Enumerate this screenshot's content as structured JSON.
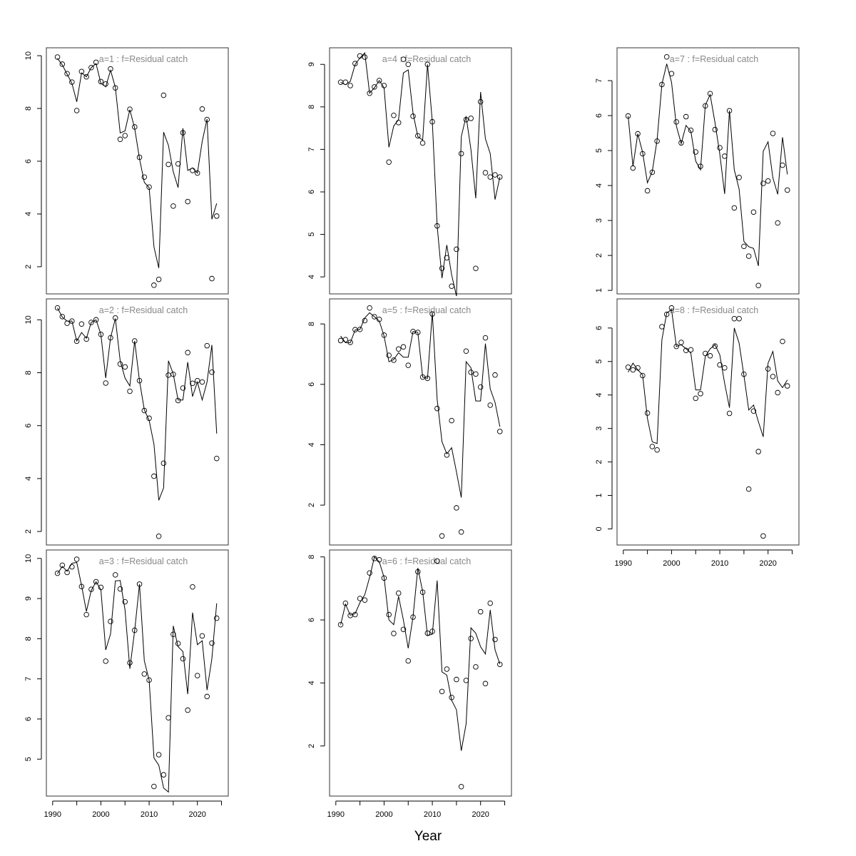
{
  "chart_data": {
    "type": "multi-panel line+scatter",
    "xlabel": "Year",
    "years": [
      1991,
      1992,
      1993,
      1994,
      1995,
      1996,
      1997,
      1998,
      1999,
      2000,
      2001,
      2002,
      2003,
      2004,
      2005,
      2006,
      2007,
      2008,
      2009,
      2010,
      2011,
      2012,
      2013,
      2014,
      2015,
      2016,
      2017,
      2018,
      2019,
      2020,
      2021,
      2022,
      2023,
      2024
    ],
    "xlim": [
      1988.7,
      2026.4
    ],
    "xticks": [
      1990,
      1995,
      2000,
      2005,
      2010,
      2015,
      2020,
      2025
    ],
    "xtick_labels": [
      "1990",
      "",
      "2000",
      "",
      "2010",
      "",
      "2020",
      ""
    ],
    "grid": false,
    "colors": {
      "points": "#000000",
      "line": "#000000",
      "title": "#888888"
    },
    "panels": [
      {
        "title": "a=1  :  f=Residual catch",
        "ylim": [
          0.97,
          10.3
        ],
        "yticks": [
          2,
          4,
          6,
          8,
          10
        ],
        "show_x_axis": false,
        "observed": [
          9.95,
          9.68,
          9.32,
          9.0,
          7.92,
          9.4,
          9.2,
          9.55,
          9.75,
          9.02,
          8.93,
          9.5,
          8.78,
          6.83,
          6.97,
          7.97,
          7.3,
          6.15,
          5.4,
          5.02,
          1.3,
          1.52,
          8.5,
          5.88,
          4.3,
          5.9,
          7.08,
          4.47,
          5.65,
          5.55,
          7.98,
          7.58,
          1.55,
          3.92
        ],
        "fitted": [
          9.9,
          9.65,
          9.3,
          8.95,
          8.25,
          9.35,
          9.2,
          9.55,
          9.7,
          8.95,
          8.82,
          9.45,
          8.8,
          7.07,
          7.15,
          7.95,
          7.25,
          6.1,
          5.2,
          5.0,
          2.75,
          1.95,
          7.1,
          6.6,
          5.6,
          5.0,
          7.25,
          5.65,
          5.75,
          5.55,
          6.75,
          7.6,
          3.8,
          4.4
        ]
      },
      {
        "title": "a=2  :  f=Residual catch",
        "ylim": [
          1.49,
          10.79
        ],
        "yticks": [
          2,
          4,
          6,
          8,
          10
        ],
        "show_x_axis": false,
        "observed": [
          10.45,
          10.12,
          9.87,
          9.95,
          9.19,
          9.84,
          9.27,
          9.9,
          10.0,
          9.45,
          7.61,
          9.32,
          10.07,
          8.33,
          8.22,
          7.3,
          9.2,
          7.7,
          6.57,
          6.28,
          4.09,
          1.82,
          4.58,
          7.91,
          7.94,
          6.95,
          7.42,
          8.76,
          7.6,
          7.7,
          7.65,
          9.02,
          8.02,
          4.76
        ],
        "fitted": [
          10.45,
          10.1,
          9.95,
          9.95,
          9.2,
          9.52,
          9.3,
          9.9,
          10.0,
          9.45,
          7.8,
          9.32,
          10.05,
          8.45,
          7.8,
          7.5,
          9.2,
          7.7,
          6.6,
          6.2,
          5.3,
          3.18,
          3.65,
          8.45,
          7.95,
          6.97,
          6.97,
          8.4,
          7.1,
          7.65,
          6.97,
          7.65,
          9.05,
          5.7
        ]
      },
      {
        "title": "a=3  :  f=Residual catch",
        "ylim": [
          4.08,
          10.21
        ],
        "yticks": [
          5,
          6,
          7,
          8,
          9,
          10
        ],
        "show_x_axis": true,
        "observed": [
          9.63,
          9.83,
          9.65,
          9.79,
          9.98,
          9.3,
          8.6,
          9.23,
          9.42,
          9.28,
          7.44,
          8.43,
          9.59,
          9.24,
          8.92,
          7.4,
          8.21,
          9.36,
          7.12,
          6.97,
          4.32,
          5.11,
          4.61,
          6.03,
          8.11,
          7.88,
          7.5,
          6.22,
          9.29,
          7.08,
          8.07,
          6.56,
          7.89,
          8.51
        ],
        "fitted": [
          9.62,
          9.8,
          9.68,
          9.88,
          9.9,
          9.32,
          8.68,
          9.2,
          9.42,
          9.22,
          7.72,
          8.12,
          9.44,
          9.45,
          8.72,
          7.25,
          8.2,
          9.36,
          7.45,
          6.97,
          5.03,
          4.85,
          4.28,
          4.18,
          8.32,
          7.8,
          7.68,
          6.62,
          8.65,
          7.85,
          7.95,
          6.72,
          7.5,
          8.88
        ]
      },
      {
        "title": "a=4  :  f=Residual catch",
        "ylim": [
          3.6,
          9.39
        ],
        "yticks": [
          4,
          5,
          6,
          7,
          8,
          9
        ],
        "show_x_axis": false,
        "observed": [
          8.58,
          8.58,
          8.5,
          9.02,
          9.2,
          9.17,
          8.32,
          8.47,
          8.62,
          8.5,
          6.7,
          7.8,
          7.63,
          9.12,
          9.0,
          7.78,
          7.32,
          7.15,
          9.0,
          7.65,
          5.2,
          4.2,
          4.45,
          3.78,
          4.65,
          6.9,
          7.7,
          7.73,
          4.2,
          8.12,
          6.45,
          6.35,
          6.4,
          6.35
        ],
        "fitted": [
          8.58,
          8.52,
          8.6,
          9.0,
          9.15,
          9.27,
          8.32,
          8.45,
          8.62,
          8.45,
          7.05,
          7.55,
          7.7,
          8.8,
          8.87,
          7.85,
          7.3,
          7.22,
          9.0,
          7.65,
          5.2,
          3.97,
          4.75,
          4.05,
          3.55,
          7.3,
          7.78,
          7.0,
          5.85,
          8.35,
          7.25,
          6.9,
          5.82,
          6.35
        ]
      },
      {
        "title": "a=5  :  f=Residual catch",
        "ylim": [
          0.68,
          8.83
        ],
        "yticks": [
          2,
          4,
          6,
          8
        ],
        "show_x_axis": false,
        "observed": [
          7.45,
          7.48,
          7.39,
          7.81,
          7.82,
          8.11,
          8.53,
          8.24,
          8.15,
          7.63,
          6.96,
          6.8,
          7.17,
          7.24,
          6.63,
          7.75,
          7.72,
          6.24,
          6.2,
          8.33,
          5.2,
          0.98,
          3.66,
          4.8,
          1.91,
          1.11,
          7.1,
          6.4,
          6.34,
          5.91,
          7.54,
          5.31,
          6.31,
          4.44
        ],
        "fitted": [
          7.6,
          7.38,
          7.38,
          7.8,
          7.82,
          8.2,
          8.37,
          8.24,
          8.1,
          7.6,
          6.75,
          6.82,
          7.05,
          6.9,
          6.9,
          7.75,
          7.72,
          6.24,
          6.2,
          8.37,
          5.5,
          4.1,
          3.7,
          3.9,
          3.1,
          2.25,
          6.75,
          6.55,
          5.45,
          5.45,
          7.35,
          5.85,
          5.4,
          4.6
        ]
      },
      {
        "title": "a=6  :  f=Residual catch",
        "ylim": [
          0.41,
          8.22
        ],
        "yticks": [
          2,
          4,
          6,
          8
        ],
        "show_x_axis": true,
        "observed": [
          5.85,
          6.53,
          6.14,
          6.17,
          6.68,
          6.63,
          7.49,
          7.95,
          7.91,
          7.33,
          6.17,
          5.57,
          6.85,
          5.7,
          4.7,
          6.09,
          7.53,
          6.88,
          5.58,
          5.64,
          7.87,
          3.73,
          4.44,
          3.54,
          4.11,
          0.71,
          4.08,
          5.41,
          4.51,
          6.26,
          3.98,
          6.53,
          5.38,
          4.59
        ],
        "fitted": [
          5.85,
          6.5,
          6.15,
          6.2,
          6.55,
          6.8,
          7.35,
          8.0,
          7.85,
          7.35,
          6.0,
          5.85,
          6.75,
          6.0,
          5.1,
          6.1,
          7.65,
          6.9,
          5.5,
          5.55,
          7.25,
          4.35,
          4.25,
          3.45,
          3.15,
          1.85,
          2.7,
          5.75,
          5.58,
          5.15,
          4.92,
          6.32,
          5.05,
          4.6
        ]
      },
      {
        "title": "a=7  :  f=Residual catch",
        "ylim": [
          0.9,
          7.94
        ],
        "yticks": [
          1,
          2,
          3,
          4,
          5,
          6,
          7
        ],
        "show_x_axis": false,
        "observed": [
          5.99,
          4.5,
          5.48,
          4.91,
          3.85,
          4.38,
          5.27,
          6.89,
          7.68,
          7.2,
          5.82,
          5.22,
          5.97,
          5.58,
          4.96,
          4.55,
          6.28,
          6.63,
          5.6,
          5.08,
          4.84,
          6.14,
          3.36,
          4.23,
          2.26,
          1.98,
          3.24,
          1.14,
          4.06,
          4.13,
          5.49,
          2.93,
          4.58,
          3.87
        ],
        "fitted": [
          5.99,
          4.55,
          5.48,
          4.95,
          4.08,
          4.4,
          5.3,
          6.9,
          7.48,
          6.95,
          5.7,
          5.2,
          5.72,
          5.55,
          4.7,
          4.45,
          6.3,
          6.6,
          5.8,
          4.9,
          3.76,
          6.14,
          4.45,
          3.9,
          2.4,
          2.25,
          2.2,
          1.7,
          4.98,
          5.25,
          4.22,
          3.75,
          5.38,
          4.32
        ]
      },
      {
        "title": "a=8  :  f=Residual catch",
        "ylim": [
          -0.48,
          6.87
        ],
        "yticks": [
          0,
          1,
          2,
          3,
          4,
          5,
          6
        ],
        "show_x_axis": true,
        "observed": [
          4.83,
          4.75,
          4.81,
          4.58,
          3.46,
          2.46,
          2.36,
          6.04,
          6.41,
          6.6,
          5.45,
          5.57,
          5.33,
          5.35,
          3.9,
          4.04,
          5.24,
          5.17,
          5.46,
          4.9,
          4.81,
          3.45,
          6.28,
          6.28,
          4.62,
          1.19,
          3.52,
          2.31,
          -0.21,
          4.78,
          4.55,
          4.07,
          5.6,
          4.27
        ],
        "fitted": [
          4.68,
          4.95,
          4.75,
          4.6,
          3.3,
          2.6,
          2.55,
          5.65,
          6.45,
          6.55,
          5.45,
          5.5,
          5.38,
          5.25,
          4.15,
          4.15,
          5.15,
          5.38,
          5.5,
          5.2,
          4.35,
          3.62,
          6.0,
          5.55,
          4.58,
          3.55,
          3.7,
          3.2,
          2.75,
          4.95,
          5.3,
          4.42,
          4.22,
          4.45
        ]
      }
    ]
  }
}
